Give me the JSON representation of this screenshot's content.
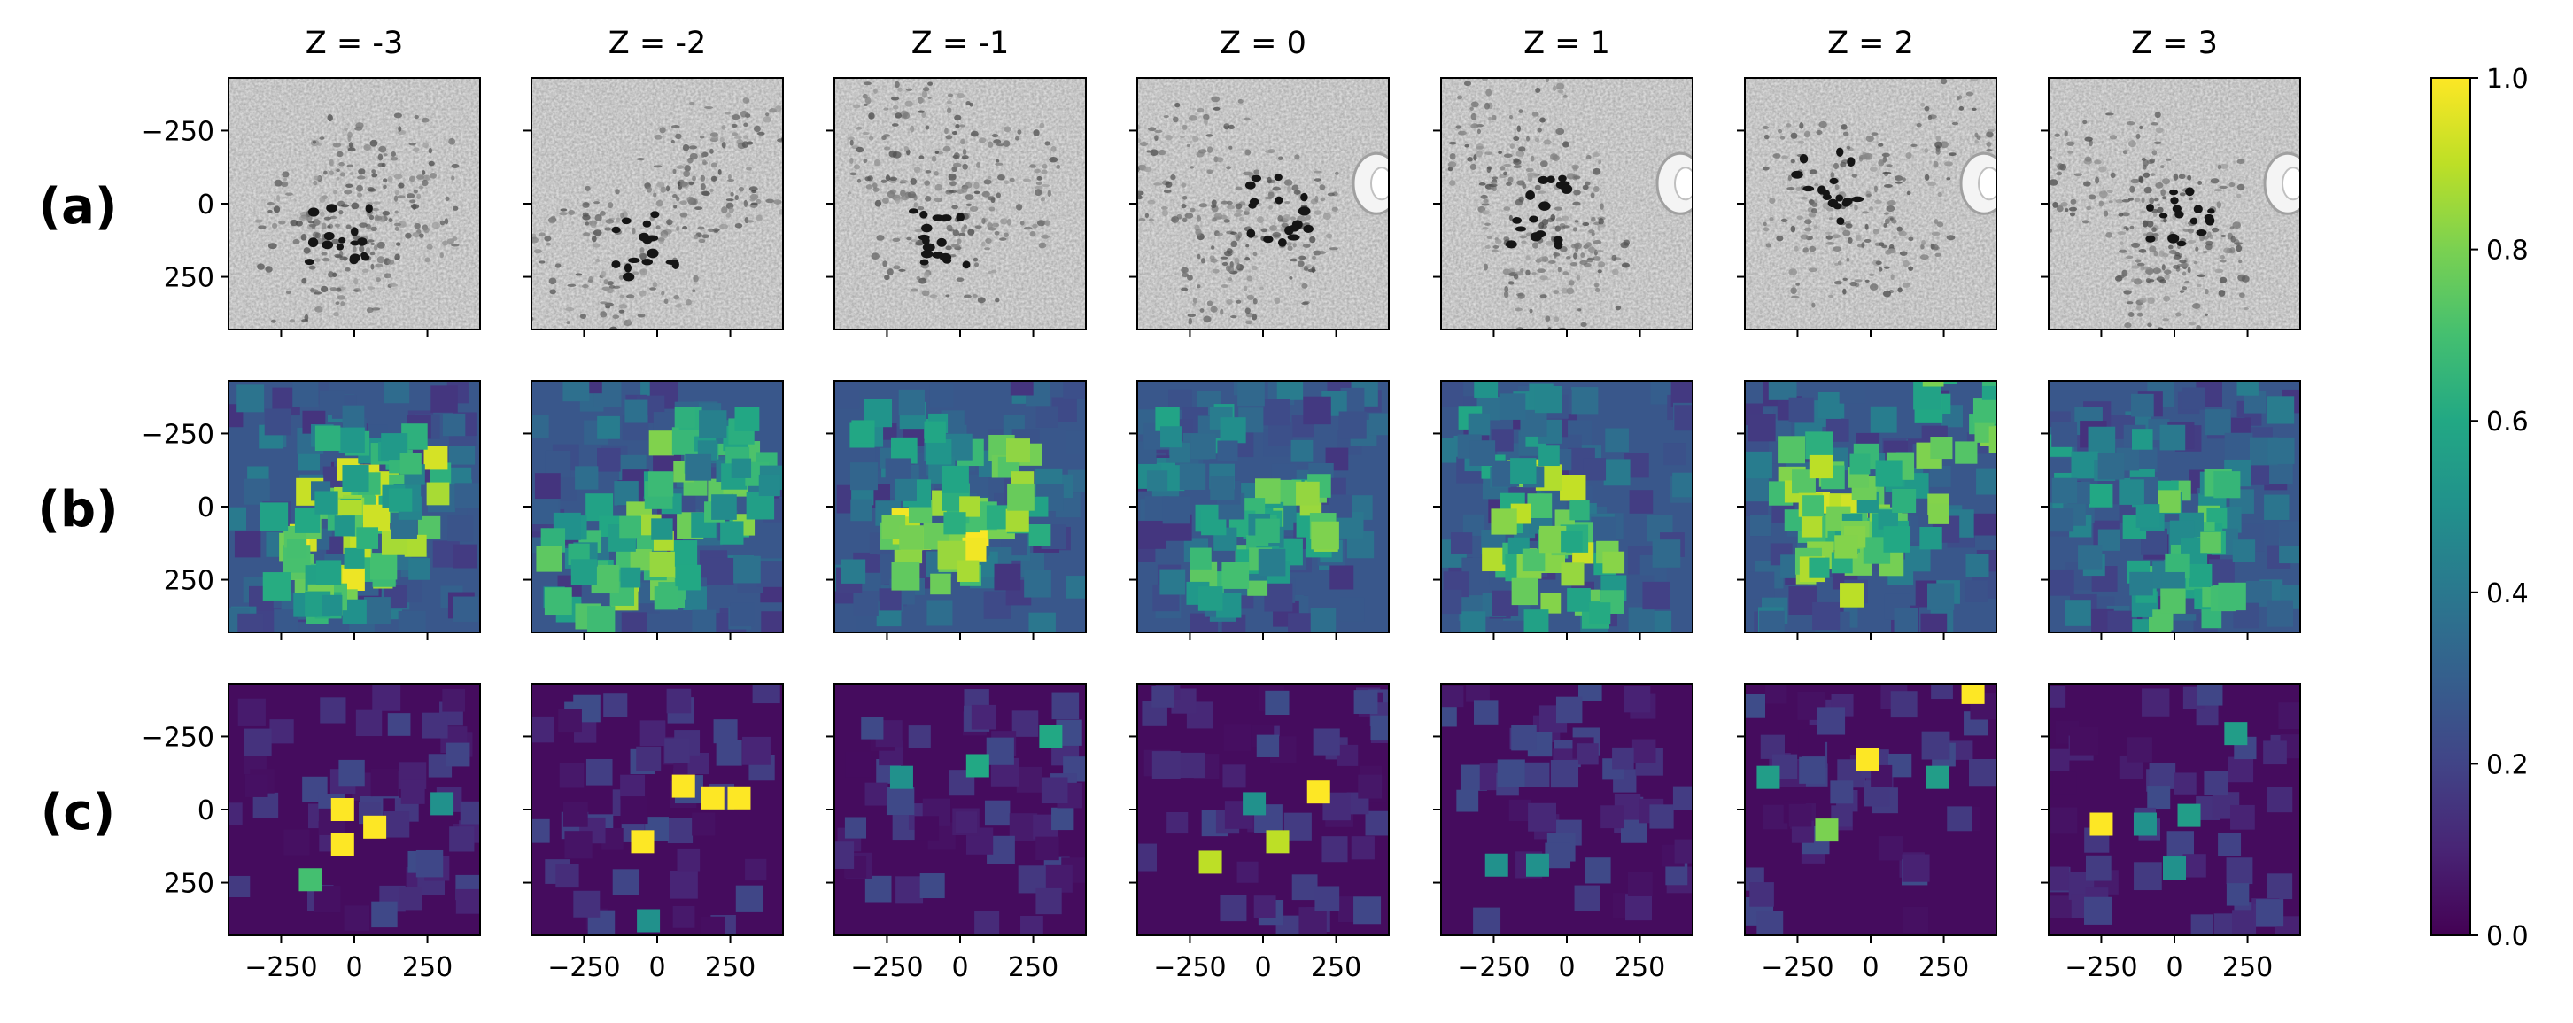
{
  "chart_data": {
    "type": "heatmap",
    "description_type": "image grid with shared colorbar",
    "column_titles": [
      "Z = -3",
      "Z = -2",
      "Z = -1",
      "Z = 0",
      "Z = 1",
      "Z = 2",
      "Z = 3"
    ],
    "row_labels": [
      "(a)",
      "(b)",
      "(c)"
    ],
    "row_kinds": [
      "microscopy",
      "probability",
      "detection"
    ],
    "x_ticks": [
      -250,
      0,
      250
    ],
    "x_tick_labels": [
      "−250",
      "0",
      "250"
    ],
    "y_ticks": [
      -250,
      0,
      250
    ],
    "y_tick_labels": [
      "−250",
      "0",
      "250"
    ],
    "axis_range": [
      -430,
      430
    ],
    "colorbar": {
      "colormap": "viridis",
      "range": [
        0.0,
        1.0
      ],
      "ticks": [
        0.0,
        0.2,
        0.4,
        0.6,
        0.8,
        1.0
      ],
      "tick_labels": [
        "0.0",
        "0.2",
        "0.4",
        "0.6",
        "0.8",
        "1.0"
      ]
    },
    "probability_hotspots": [
      [
        [
          -50,
          100,
          1.0
        ],
        [
          140,
          -20,
          0.95
        ],
        [
          -120,
          200,
          0.8
        ],
        [
          50,
          -100,
          0.7
        ]
      ],
      [
        [
          -40,
          150,
          0.9
        ],
        [
          150,
          -60,
          0.85
        ],
        [
          -250,
          230,
          0.8
        ],
        [
          260,
          -150,
          0.7
        ]
      ],
      [
        [
          -80,
          120,
          1.0
        ],
        [
          130,
          -60,
          0.9
        ],
        [
          -170,
          -210,
          0.6
        ]
      ],
      [
        [
          50,
          30,
          0.85
        ],
        [
          -60,
          200,
          0.75
        ],
        [
          -250,
          -150,
          0.6
        ]
      ],
      [
        [
          -90,
          30,
          0.95
        ],
        [
          0,
          250,
          0.85
        ],
        [
          -200,
          -250,
          0.6
        ]
      ],
      [
        [
          -150,
          -60,
          0.95
        ],
        [
          -70,
          140,
          0.9
        ],
        [
          70,
          10,
          0.85
        ],
        [
          360,
          -340,
          0.9
        ]
      ],
      [
        [
          20,
          60,
          0.8
        ],
        [
          40,
          280,
          0.75
        ],
        [
          -240,
          -100,
          0.6
        ]
      ]
    ],
    "detection_hotspots": [
      [
        [
          -40,
          0,
          1.0
        ],
        [
          -40,
          120,
          1.0
        ],
        [
          70,
          60,
          1.0
        ],
        [
          -150,
          240,
          0.7
        ],
        [
          300,
          -20,
          0.5
        ]
      ],
      [
        [
          90,
          -80,
          1.0
        ],
        [
          190,
          -40,
          1.0
        ],
        [
          280,
          -40,
          1.0
        ],
        [
          -50,
          110,
          1.0
        ],
        [
          -30,
          380,
          0.5
        ]
      ],
      [
        [
          60,
          -150,
          0.6
        ],
        [
          310,
          -250,
          0.6
        ],
        [
          -200,
          -110,
          0.5
        ]
      ],
      [
        [
          190,
          -60,
          1.0
        ],
        [
          50,
          110,
          0.9
        ],
        [
          -180,
          180,
          0.9
        ],
        [
          -30,
          -20,
          0.5
        ]
      ],
      [
        [
          -100,
          190,
          0.5
        ],
        [
          -240,
          190,
          0.5
        ]
      ],
      [
        [
          -10,
          -170,
          1.0
        ],
        [
          350,
          -400,
          1.0
        ],
        [
          -150,
          70,
          0.8
        ],
        [
          230,
          -110,
          0.55
        ],
        [
          -350,
          -110,
          0.55
        ]
      ],
      [
        [
          -250,
          50,
          1.0
        ],
        [
          -100,
          50,
          0.5
        ],
        [
          210,
          -260,
          0.55
        ],
        [
          50,
          20,
          0.55
        ],
        [
          0,
          200,
          0.5
        ]
      ]
    ]
  }
}
